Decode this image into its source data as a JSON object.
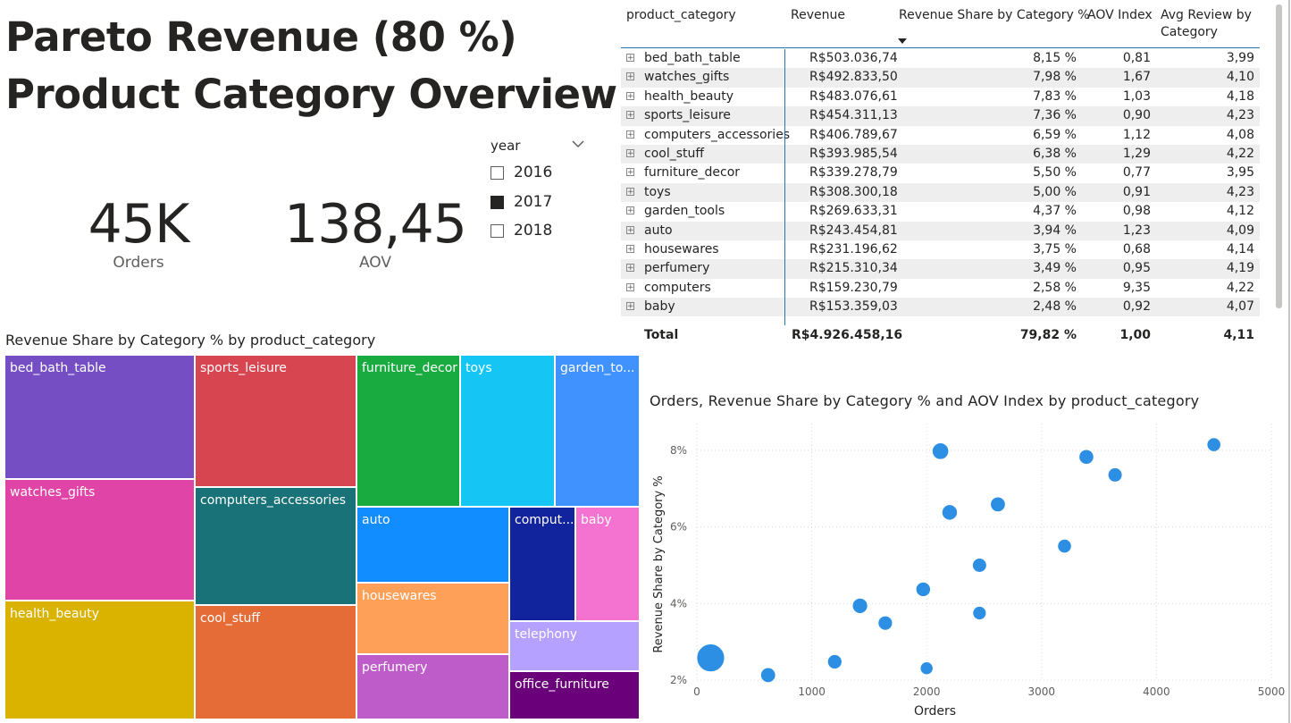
{
  "title": {
    "line1": "Pareto Revenue (80 %)",
    "line2": "Product Category Overview"
  },
  "kpis": [
    {
      "value": "45K",
      "label": "Orders"
    },
    {
      "value": "138,45",
      "label": "AOV"
    }
  ],
  "slicer": {
    "title": "year",
    "icon": "chevron-down-icon",
    "options": [
      {
        "label": "2016",
        "checked": false
      },
      {
        "label": "2017",
        "checked": true
      },
      {
        "label": "2018",
        "checked": false
      }
    ]
  },
  "table": {
    "headers": {
      "category": "product_category",
      "revenue": "Revenue",
      "share": "Revenue Share by Category %",
      "aov": "AOV Index",
      "review": "Avg Review by Category"
    },
    "sorted_column": "share",
    "rows": [
      {
        "category": "bed_bath_table",
        "revenue": "R$503.036,74",
        "share": "8,15 %",
        "aov": "0,81",
        "review": "3,99"
      },
      {
        "category": "watches_gifts",
        "revenue": "R$492.833,50",
        "share": "7,98 %",
        "aov": "1,67",
        "review": "4,10"
      },
      {
        "category": "health_beauty",
        "revenue": "R$483.076,61",
        "share": "7,83 %",
        "aov": "1,03",
        "review": "4,18"
      },
      {
        "category": "sports_leisure",
        "revenue": "R$454.311,13",
        "share": "7,36 %",
        "aov": "0,90",
        "review": "4,23"
      },
      {
        "category": "computers_accessories",
        "revenue": "R$406.789,67",
        "share": "6,59 %",
        "aov": "1,12",
        "review": "4,08"
      },
      {
        "category": "cool_stuff",
        "revenue": "R$393.985,54",
        "share": "6,38 %",
        "aov": "1,29",
        "review": "4,22"
      },
      {
        "category": "furniture_decor",
        "revenue": "R$339.278,79",
        "share": "5,50 %",
        "aov": "0,77",
        "review": "3,95"
      },
      {
        "category": "toys",
        "revenue": "R$308.300,18",
        "share": "5,00 %",
        "aov": "0,91",
        "review": "4,23"
      },
      {
        "category": "garden_tools",
        "revenue": "R$269.633,31",
        "share": "4,37 %",
        "aov": "0,98",
        "review": "4,12"
      },
      {
        "category": "auto",
        "revenue": "R$243.454,81",
        "share": "3,94 %",
        "aov": "1,23",
        "review": "4,09"
      },
      {
        "category": "housewares",
        "revenue": "R$231.196,62",
        "share": "3,75 %",
        "aov": "0,68",
        "review": "4,14"
      },
      {
        "category": "perfumery",
        "revenue": "R$215.310,34",
        "share": "3,49 %",
        "aov": "0,95",
        "review": "4,19"
      },
      {
        "category": "computers",
        "revenue": "R$159.230,79",
        "share": "2,58 %",
        "aov": "9,35",
        "review": "4,22"
      },
      {
        "category": "baby",
        "revenue": "R$153.359,03",
        "share": "2,48 %",
        "aov": "0,92",
        "review": "4,07"
      }
    ],
    "total": {
      "label": "Total",
      "revenue": "R$4.926.458,16",
      "share": "79,82 %",
      "aov": "1,00",
      "review": "4,11"
    }
  },
  "treemap": {
    "title": "Revenue Share by Category % by product_category",
    "cells": [
      {
        "label": "bed_bath_table",
        "color": "#744EC2"
      },
      {
        "label": "watches_gifts",
        "color": "#E044A7"
      },
      {
        "label": "health_beauty",
        "color": "#D9B300"
      },
      {
        "label": "sports_leisure",
        "color": "#D64550"
      },
      {
        "label": "computers_accessories",
        "color": "#197278"
      },
      {
        "label": "cool_stuff",
        "color": "#E66C37"
      },
      {
        "label": "furniture_decor",
        "color": "#1AAB40"
      },
      {
        "label": "toys",
        "color": "#15C6F4"
      },
      {
        "label": "garden_to...",
        "color": "#4092FF"
      },
      {
        "label": "auto",
        "color": "#118DFF"
      },
      {
        "label": "housewares",
        "color": "#FFA058"
      },
      {
        "label": "perfumery",
        "color": "#BE5DC9"
      },
      {
        "label": "comput...",
        "color": "#12239E"
      },
      {
        "label": "baby",
        "color": "#F472D0"
      },
      {
        "label": "telephony",
        "color": "#B5A1FF"
      },
      {
        "label": "office_furniture",
        "color": "#6B007B"
      }
    ]
  },
  "chart_data": {
    "type": "scatter",
    "title": "Orders, Revenue Share by Category % and AOV Index by product_category",
    "xlabel": "Orders",
    "ylabel": "Revenue Share by Category %",
    "xlim": [
      0,
      5000
    ],
    "ylim": [
      2,
      8.7
    ],
    "x_ticks": [
      "0",
      "1000",
      "2000",
      "3000",
      "4000",
      "5000"
    ],
    "y_ticks": [
      "2%",
      "4%",
      "6%",
      "8%"
    ],
    "grid": true,
    "bubble_color": "#2C8FE3",
    "points": [
      {
        "x": 4500,
        "y": 8.15,
        "size": 0.81
      },
      {
        "x": 2120,
        "y": 7.98,
        "size": 1.67
      },
      {
        "x": 3390,
        "y": 7.83,
        "size": 1.03
      },
      {
        "x": 3640,
        "y": 7.36,
        "size": 0.9
      },
      {
        "x": 2620,
        "y": 6.59,
        "size": 1.12
      },
      {
        "x": 2200,
        "y": 6.38,
        "size": 1.29
      },
      {
        "x": 3200,
        "y": 5.5,
        "size": 0.77
      },
      {
        "x": 2460,
        "y": 5.0,
        "size": 0.91
      },
      {
        "x": 1970,
        "y": 4.37,
        "size": 0.98
      },
      {
        "x": 1420,
        "y": 3.94,
        "size": 1.23
      },
      {
        "x": 2460,
        "y": 3.75,
        "size": 0.68
      },
      {
        "x": 1640,
        "y": 3.49,
        "size": 0.95
      },
      {
        "x": 120,
        "y": 2.58,
        "size": 9.35
      },
      {
        "x": 1200,
        "y": 2.48,
        "size": 0.92
      },
      {
        "x": 620,
        "y": 2.13,
        "size": 1.1
      },
      {
        "x": 2000,
        "y": 2.31,
        "size": 0.51
      }
    ]
  }
}
